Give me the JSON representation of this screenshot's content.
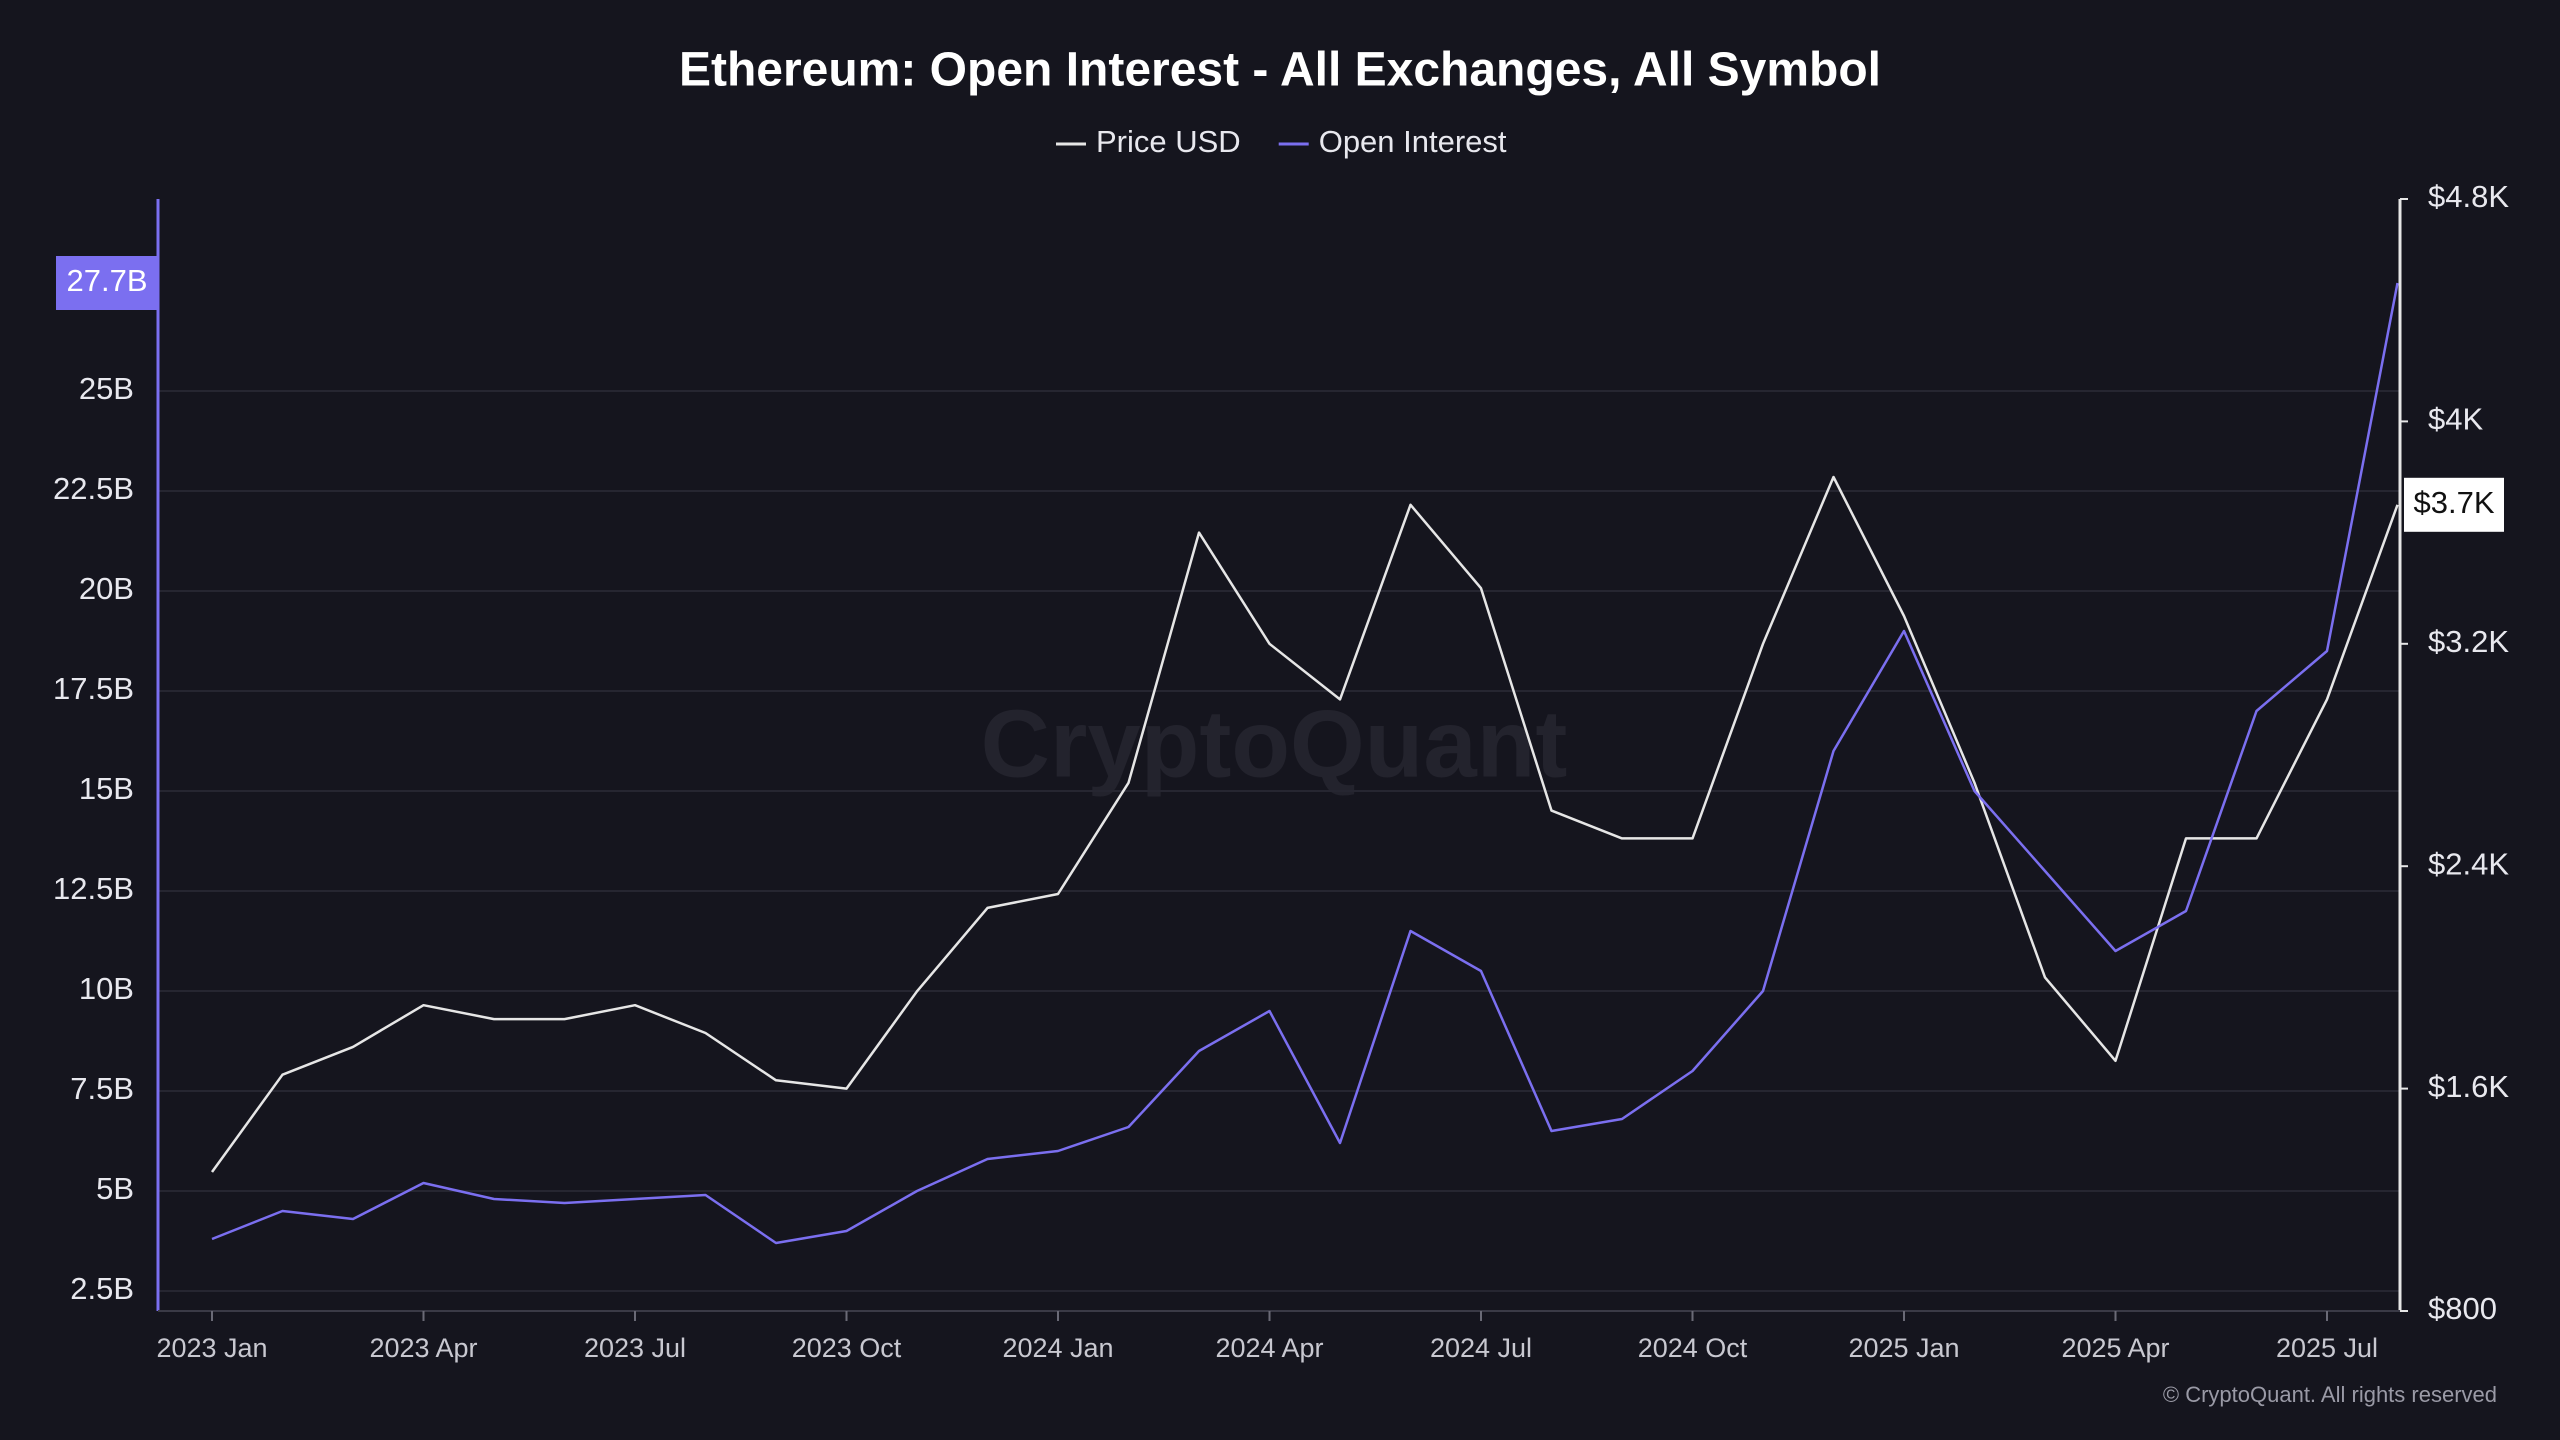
{
  "chart_data": {
    "type": "line",
    "title": "Ethereum: Open Interest - All Exchanges, All Symbol",
    "watermark": "CryptoQuant",
    "footer": "© CryptoQuant. All rights reserved",
    "x": [
      "2023 Jan",
      "2023 Feb",
      "2023 Mar",
      "2023 Apr",
      "2023 May",
      "2023 Jun",
      "2023 Jul",
      "2023 Aug",
      "2023 Sep",
      "2023 Oct",
      "2023 Nov",
      "2023 Dec",
      "2024 Jan",
      "2024 Feb",
      "2024 Mar",
      "2024 Apr",
      "2024 May",
      "2024 Jun",
      "2024 Jul",
      "2024 Aug",
      "2024 Sep",
      "2024 Oct",
      "2024 Nov",
      "2024 Dec",
      "2025 Jan",
      "2025 Feb",
      "2025 Mar",
      "2025 Apr",
      "2025 May",
      "2025 Jun",
      "2025 Jul",
      "2025 Aug"
    ],
    "xticks": [
      "2023 Jan",
      "2023 Apr",
      "2023 Jul",
      "2023 Oct",
      "2024 Jan",
      "2024 Apr",
      "2024 Jul",
      "2024 Oct",
      "2025 Jan",
      "2025 Apr",
      "2025 Jul"
    ],
    "series": [
      {
        "name": "Price USD",
        "color": "#e6e6e6",
        "axis": "y2",
        "last_label": "$3.7K",
        "values": [
          1300,
          1650,
          1750,
          1900,
          1850,
          1850,
          1900,
          1800,
          1630,
          1600,
          1950,
          2250,
          2300,
          2700,
          3600,
          3200,
          3000,
          3700,
          3400,
          2600,
          2500,
          2500,
          3200,
          3800,
          3300,
          2700,
          2000,
          1700,
          2500,
          2500,
          3000,
          3700
        ]
      },
      {
        "name": "Open Interest",
        "color": "#7b6ff0",
        "axis": "y",
        "last_label": "27.7B",
        "values": [
          3.8,
          4.5,
          4.3,
          5.2,
          4.8,
          4.7,
          4.8,
          4.9,
          3.7,
          4.0,
          5.0,
          5.8,
          6.0,
          6.6,
          8.5,
          9.5,
          6.2,
          11.5,
          10.5,
          6.5,
          6.8,
          8.0,
          10.0,
          16.0,
          19.0,
          15.0,
          13.0,
          11.0,
          12.0,
          17.0,
          18.5,
          27.7
        ]
      }
    ],
    "ylim": [
      2,
      29.8
    ],
    "yticks": [
      {
        "value": 2.5,
        "label": "2.5B"
      },
      {
        "value": 5,
        "label": "5B"
      },
      {
        "value": 7.5,
        "label": "7.5B"
      },
      {
        "value": 10,
        "label": "10B"
      },
      {
        "value": 12.5,
        "label": "12.5B"
      },
      {
        "value": 15,
        "label": "15B"
      },
      {
        "value": 17.5,
        "label": "17.5B"
      },
      {
        "value": 20,
        "label": "20B"
      },
      {
        "value": 22.5,
        "label": "22.5B"
      },
      {
        "value": 25,
        "label": "25B"
      }
    ],
    "y2lim": [
      800,
      4800
    ],
    "y2ticks": [
      {
        "value": 800,
        "label": "$800"
      },
      {
        "value": 1600,
        "label": "$1.6K"
      },
      {
        "value": 2400,
        "label": "$2.4K"
      },
      {
        "value": 3200,
        "label": "$3.2K"
      },
      {
        "value": 4000,
        "label": "$4K"
      },
      {
        "value": 4800,
        "label": "$4.8K"
      }
    ],
    "grid": true
  }
}
